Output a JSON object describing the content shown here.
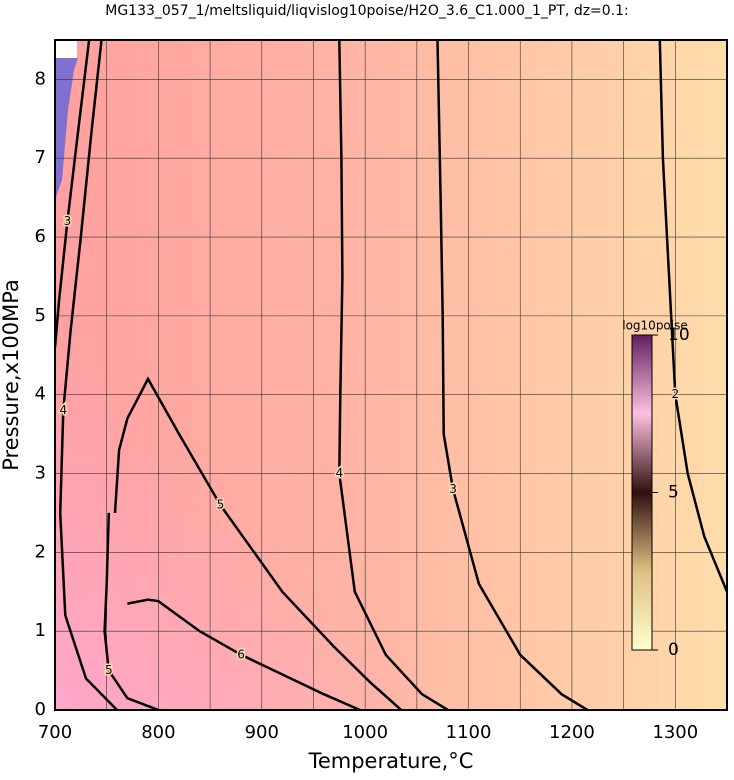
{
  "chart_data": {
    "type": "contour",
    "title": "MG133_057_1/meltsliquid/liqvislog10poise/H2O_3.6_C1.000_1_PT, dz=0.1:",
    "x_label": "Temperature,°C",
    "y_label": "Pressure,x100MPa",
    "xlim": [
      700,
      1350
    ],
    "ylim": [
      0,
      8.5
    ],
    "xticks": [
      700,
      800,
      900,
      1000,
      1100,
      1200,
      1300
    ],
    "yticks": [
      0,
      1,
      2,
      3,
      4,
      5,
      6,
      7,
      8
    ],
    "xgrid": [
      750,
      850,
      950,
      1050,
      1150,
      1250
    ],
    "contours": [
      {
        "level": 2,
        "x": [
          1285,
          1288,
          1292,
          1300,
          1312,
          1328,
          1350
        ],
        "y": [
          8.5,
          7,
          6,
          4,
          3,
          2.2,
          1.5
        ]
      },
      {
        "level": 3,
        "x": [
          1070,
          1073,
          1075,
          1076,
          1085,
          1110,
          1150,
          1190,
          1215
        ],
        "y": [
          8.5,
          6.5,
          5,
          3.5,
          2.8,
          1.6,
          0.7,
          0.2,
          0
        ]
      },
      {
        "level": 4,
        "x": [
          975,
          977,
          978,
          976,
          975,
          990,
          1020,
          1055,
          1080
        ],
        "y": [
          8.5,
          7,
          5.5,
          4,
          3,
          1.5,
          0.7,
          0.2,
          0
        ]
      },
      {
        "level": 5,
        "x": [
          758,
          762,
          770,
          790,
          820,
          860,
          920,
          970,
          1005,
          1035
        ],
        "y": [
          2.5,
          3.3,
          3.7,
          4.2,
          3.5,
          2.6,
          1.5,
          0.8,
          0.35,
          0
        ]
      },
      {
        "level": 6,
        "x": [
          770,
          790,
          800,
          840,
          880,
          920,
          960,
          995
        ],
        "y": [
          1.35,
          1.4,
          1.38,
          1.0,
          0.7,
          0.45,
          0.2,
          0
        ]
      },
      {
        "level": 4,
        "x": [
          745,
          735,
          725,
          715,
          708,
          705,
          710,
          730,
          760
        ],
        "y": [
          8.5,
          7.3,
          6.0,
          4.8,
          3.8,
          2.5,
          1.2,
          0.4,
          0
        ]
      },
      {
        "level": 3,
        "x": [
          733,
          722,
          712,
          704,
          700
        ],
        "y": [
          8.5,
          7.3,
          6.2,
          5.2,
          4.6
        ]
      },
      {
        "level": 5,
        "x": [
          752,
          750,
          748,
          752,
          770,
          800
        ],
        "y": [
          2.5,
          1.6,
          1.0,
          0.5,
          0.15,
          0
        ]
      }
    ],
    "colorbar": {
      "label": "log10poise",
      "lim": [
        0,
        10
      ],
      "ticks": [
        0,
        5,
        10
      ]
    }
  }
}
